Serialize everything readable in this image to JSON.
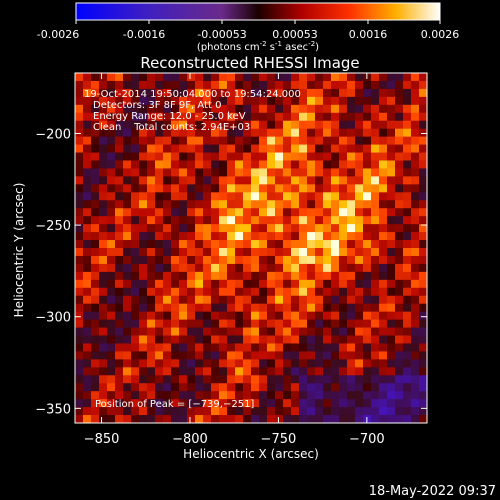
{
  "colorbar": {
    "ticks": [
      "-0.0026",
      "-0.0016",
      "-0.00053",
      "0.00053",
      "0.0016",
      "0.0026"
    ],
    "unit_label_main": "(photons cm",
    "unit_sup1": "-2",
    "unit_mid1": " s",
    "unit_sup2": "-1",
    "unit_mid2": " asec",
    "unit_sup3": "-2",
    "unit_end": ")"
  },
  "chart_data": {
    "type": "heatmap",
    "title": "Reconstructed RHESSI Image",
    "xlabel": "Heliocentric X (arcsec)",
    "ylabel": "Heliocentric Y (arcsec)",
    "xlim": [
      -865,
      -666
    ],
    "ylim": [
      -358,
      -167
    ],
    "x_ticks": [
      -850,
      -800,
      -750,
      -700
    ],
    "y_ticks": [
      -200,
      -250,
      -300,
      -350
    ],
    "x_tick_labels": [
      "−850",
      "−800",
      "−750",
      "−700"
    ],
    "y_tick_labels": [
      "−200",
      "−250",
      "−300",
      "−350"
    ],
    "colormap": "hot (blue-purple negative, red-yellow-white positive)",
    "value_range": [
      -0.0026,
      0.0026
    ],
    "peak": {
      "x": -739,
      "y": -251
    },
    "annotations": [
      "19-Oct-2014 19:50:04.000 to 19:54:24.000",
      "Detectors: 3F 8F 9F, Att 0",
      "Energy Range: 12.0 - 25.0 keV",
      "Clean    Total counts: 2.94E+03"
    ],
    "peak_label": "Position of Peak = [−739,−251]"
  },
  "footer": {
    "timestamp": "18-May-2022 09:37"
  }
}
